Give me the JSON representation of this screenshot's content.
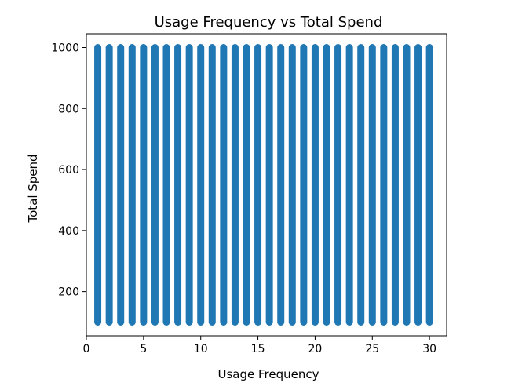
{
  "chart_data": {
    "type": "scatter",
    "title": "Usage Frequency vs Total Spend",
    "xlabel": "Usage Frequency",
    "ylabel": "Total Spend",
    "xlim": [
      0,
      31.5
    ],
    "ylim": [
      55,
      1045
    ],
    "xticks": [
      "0",
      "5",
      "10",
      "15",
      "20",
      "25",
      "30"
    ],
    "yticks": [
      "200",
      "400",
      "600",
      "800",
      "1000"
    ],
    "x_values": [
      1,
      2,
      3,
      4,
      5,
      6,
      7,
      8,
      9,
      10,
      11,
      12,
      13,
      14,
      15,
      16,
      17,
      18,
      19,
      20,
      21,
      22,
      23,
      24,
      25,
      26,
      27,
      28,
      29,
      30
    ],
    "y_range_per_x": [
      100,
      1000
    ],
    "marker_color": "#1f77b4",
    "grid": false,
    "legend": "none"
  }
}
